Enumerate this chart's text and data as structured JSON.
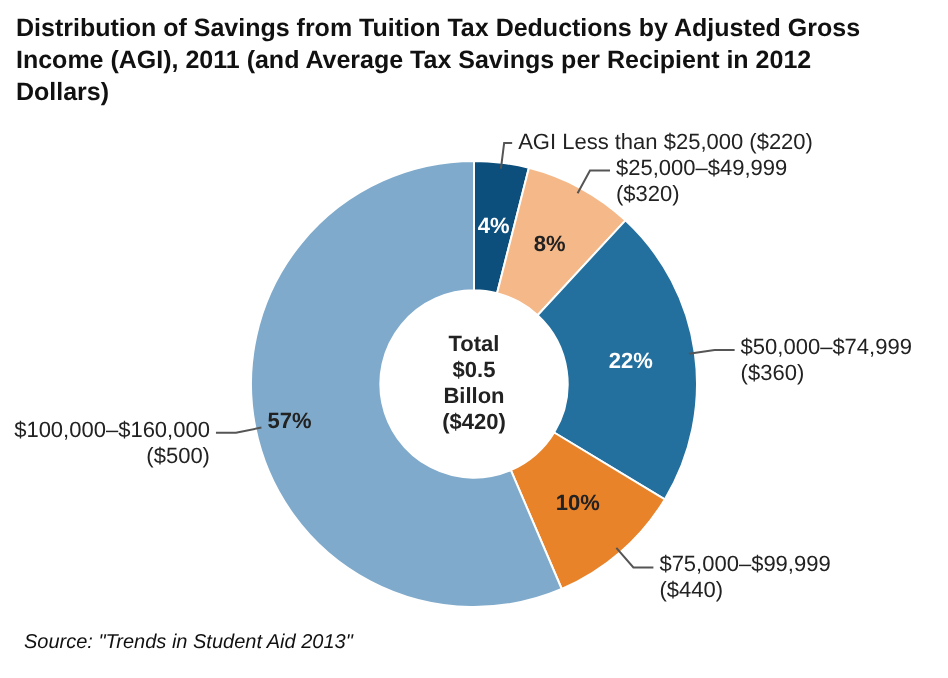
{
  "chart_data": {
    "type": "donut",
    "title": "Distribution of Savings from Tuition Tax Deductions by Adjusted Gross Income (AGI), 2011 (and Average Tax Savings per Recipient in 2012 Dollars)",
    "categories": [
      "AGI Less than $25,000 ($220)",
      "$25,000–$49,999 ($320)",
      "$50,000–$74,999 ($360)",
      "$75,000–$99,999 ($440)",
      "$100,000–$160,000 ($500)"
    ],
    "values": [
      4,
      8,
      22,
      10,
      57
    ],
    "colors": [
      "#0d4f7c",
      "#f5b888",
      "#236f9e",
      "#e8832a",
      "#7faacb"
    ],
    "value_labels": [
      "4%",
      "8%",
      "22%",
      "10%",
      "57%"
    ],
    "annotations": [
      "Total $0.5 Billon ($420)",
      "Source: \"Trends in Student Aid 2013\""
    ]
  }
}
